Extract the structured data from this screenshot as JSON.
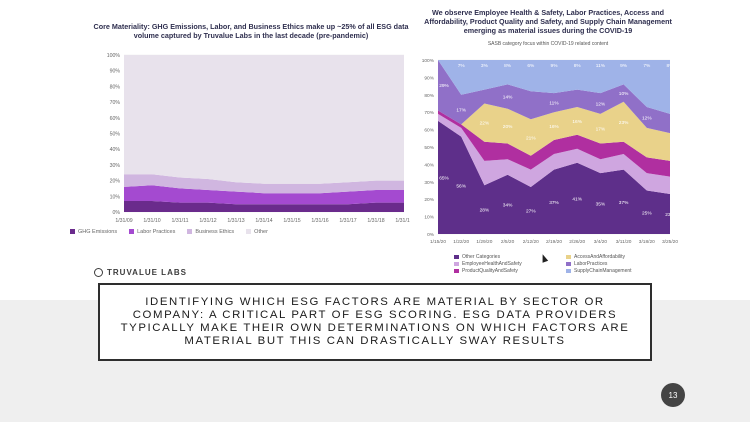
{
  "slide": {
    "page_number": "13"
  },
  "logo": {
    "text": "TRUVALUE LABS"
  },
  "caption": "IDENTIFYING WHICH ESG FACTORS ARE MATERIAL BY SECTOR OR COMPANY: A CRITICAL PART OF ESG SCORING. ESG DATA PROVIDERS TYPICALLY MAKE THEIR OWN DETERMINATIONS ON WHICH FACTORS ARE MATERIAL BUT THIS CAN DRASTICALLY SWAY RESULTS",
  "colors": {
    "ghg": "#6a2b8c",
    "labor": "#a44ad0",
    "business": "#d0b6e0",
    "other": "#e8e2ec",
    "r_other": "#5e2f8a",
    "r_health": "#cfa6e0",
    "r_product": "#b02fa0",
    "r_access": "#e9d28a",
    "r_laborprac": "#9070c8",
    "r_supply": "#9fb3e8"
  },
  "chart_data": [
    {
      "type": "area",
      "stacked": true,
      "title": "Core Materiality: GHG Emissions, Labor, and Business Ethics make up ~25% of all ESG data volume captured by Truvalue Labs in the last decade (pre-pandemic)",
      "x": [
        "1/31/09",
        "1/31/10",
        "1/31/11",
        "1/31/12",
        "1/31/13",
        "1/31/14",
        "1/31/15",
        "1/31/16",
        "1/31/17",
        "1/31/18",
        "1/31/19"
      ],
      "yticks": [
        "0%",
        "10%",
        "20%",
        "30%",
        "40%",
        "50%",
        "60%",
        "70%",
        "80%",
        "90%",
        "100%"
      ],
      "ylim": [
        0,
        100
      ],
      "series": [
        {
          "name": "GHG Emissions",
          "values": [
            7,
            7,
            6,
            6,
            5,
            5,
            5,
            5,
            5,
            6,
            6
          ]
        },
        {
          "name": "Labor Practices",
          "values": [
            9,
            10,
            9,
            8,
            8,
            7,
            7,
            7,
            8,
            8,
            8
          ]
        },
        {
          "name": "Business Ethics",
          "values": [
            8,
            7,
            7,
            7,
            6,
            6,
            6,
            6,
            6,
            6,
            6
          ]
        },
        {
          "name": "Other",
          "values": [
            76,
            76,
            78,
            79,
            81,
            82,
            82,
            82,
            81,
            80,
            80
          ]
        }
      ]
    },
    {
      "type": "area",
      "stacked": true,
      "title": "We observe Employee Health & Safety, Labor Practices, Access and Affordability, Product Quality and Safety, and Supply Chain Management emerging as material issues during the COVID-19",
      "subtitle": "SASB category focus within COVID-19 related content",
      "x": [
        "1/15/20",
        "1/22/20",
        "1/29/20",
        "2/5/20",
        "2/12/20",
        "2/19/20",
        "2/26/20",
        "3/4/20",
        "3/11/20",
        "3/18/20",
        "3/25/20"
      ],
      "yticks": [
        "0%",
        "10%",
        "20%",
        "30%",
        "40%",
        "50%",
        "60%",
        "70%",
        "80%",
        "90%",
        "100%"
      ],
      "ylim": [
        0,
        100
      ],
      "series": [
        {
          "name": "Other Categories",
          "values": [
            65,
            56,
            28,
            34,
            27,
            37,
            41,
            35,
            37,
            25,
            23
          ],
          "labels": [
            "65%",
            "56%",
            "28%",
            "34%",
            "27%",
            "37%",
            "41%",
            "35%",
            "37%",
            "25%",
            "23%"
          ]
        },
        {
          "name": "EmployeeHealthAndSafety",
          "values": [
            4,
            5,
            14,
            9,
            10,
            9,
            8,
            8,
            9,
            10,
            10
          ]
        },
        {
          "name": "ProductQualityAndSafety",
          "values": [
            2,
            2,
            11,
            9,
            8,
            8,
            8,
            9,
            7,
            9,
            9
          ]
        },
        {
          "name": "AccessAndAffordability",
          "values": [
            0,
            0,
            22,
            20,
            21,
            16,
            16,
            17,
            23,
            17,
            16
          ],
          "labels": [
            "",
            "",
            "22%",
            "20%",
            "21%",
            "16%",
            "16%",
            "17%",
            "23%",
            "",
            ""
          ]
        },
        {
          "name": "LaborPractices",
          "values": [
            29,
            17,
            8,
            14,
            16,
            11,
            10,
            12,
            10,
            12,
            11
          ],
          "labels": [
            "29%",
            "17%",
            "",
            "14%",
            "",
            "11%",
            "",
            "12%",
            "10%",
            "12%",
            ""
          ]
        },
        {
          "name": "SupplyChainManagement",
          "values": [
            0,
            20,
            17,
            14,
            18,
            19,
            17,
            19,
            14,
            27,
            31
          ],
          "labels": [
            "",
            "",
            "",
            "",
            "",
            "",
            "",
            "",
            "",
            "",
            ""
          ]
        }
      ],
      "top_labels": [
        "",
        "7%",
        "3%",
        "8%",
        "6%",
        "9%",
        "8%",
        "11%",
        "9%",
        "7%",
        "8%"
      ]
    }
  ]
}
